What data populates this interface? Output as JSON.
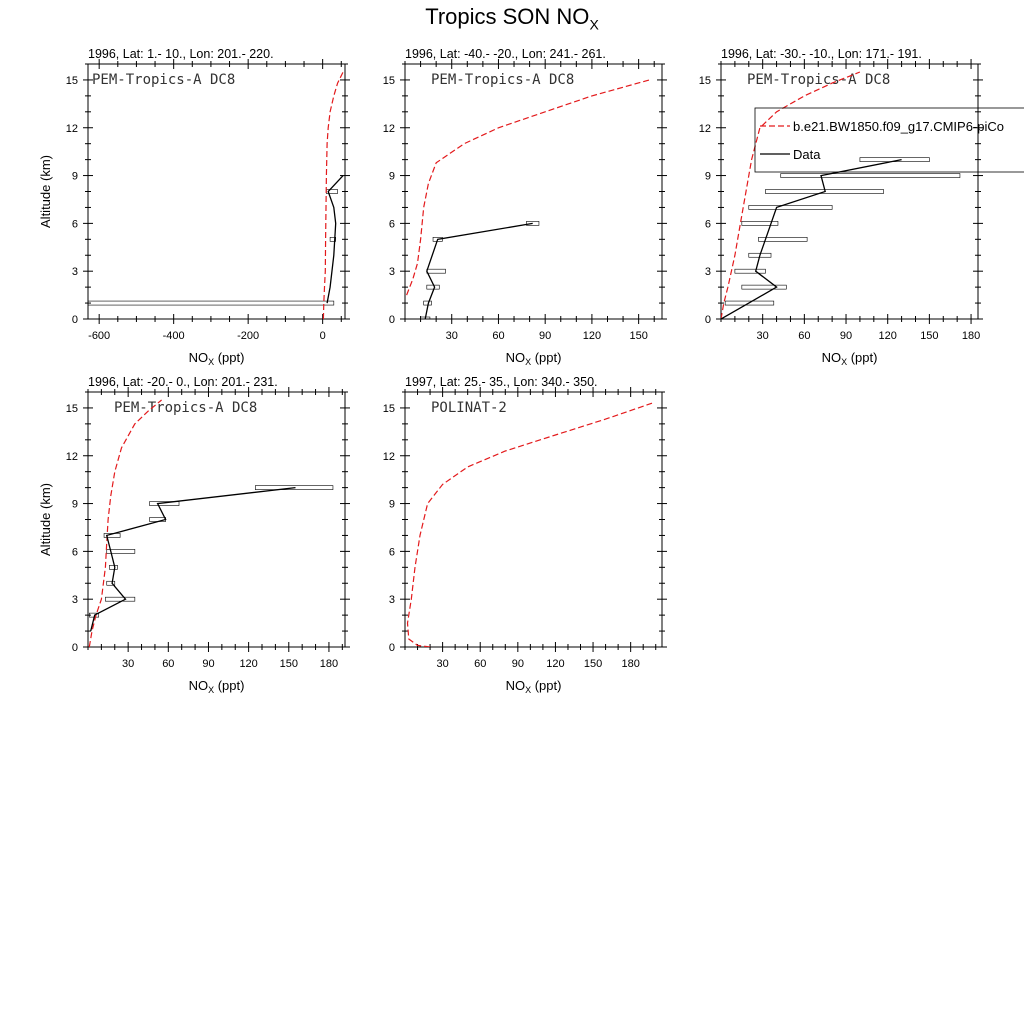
{
  "title": {
    "main": "Tropics SON NO",
    "sub": "X"
  },
  "legend": {
    "model": "b.e21.BW1850.f09_g17.CMIP6-piCo",
    "data": "Data"
  },
  "chart_data": [
    {
      "type": "line",
      "subtitle": "1996, Lat: 1.- 10., Lon: 201.- 220.",
      "campaign": "PEM-Tropics-A DC8",
      "xlabel": "NO",
      "xlabel_sub": "X",
      "xlabel_unit": " (ppt)",
      "ylabel": "Altitude (km)",
      "xlim": [
        -630,
        60
      ],
      "ylim": [
        0,
        16
      ],
      "xticks": [
        -600,
        -400,
        -200,
        0
      ],
      "yticks": [
        0,
        3,
        6,
        9,
        12,
        15
      ],
      "series": [
        {
          "name": "b.e21.BW1850.f09_g17.CMIP6-piCo",
          "style": "dashed",
          "color": "#e31a1c",
          "x": [
            2,
            3,
            5,
            7,
            8,
            9,
            10,
            12,
            15,
            20,
            30,
            40,
            55
          ],
          "y": [
            0,
            1,
            2,
            3,
            5,
            7,
            9,
            11,
            12,
            13,
            14,
            14.8,
            15.5
          ]
        },
        {
          "name": "Data",
          "style": "solid",
          "color": "#000000",
          "x": [
            12,
            20,
            30,
            35,
            30,
            15,
            55
          ],
          "y": [
            1,
            2,
            4,
            6,
            7,
            8,
            9
          ]
        }
      ],
      "boxes": [
        {
          "y": 1,
          "lo": -630,
          "hi": 30
        },
        {
          "y": 8,
          "lo": 10,
          "hi": 40
        },
        {
          "y": 5,
          "lo": 20,
          "hi": 35
        }
      ]
    },
    {
      "type": "line",
      "subtitle": "1996, Lat: -40.- -20., Lon: 241.- 261.",
      "campaign": "PEM-Tropics-A DC8",
      "xlabel": "NO",
      "xlabel_sub": "X",
      "xlabel_unit": " (ppt)",
      "ylabel": "",
      "xlim": [
        0,
        165
      ],
      "ylim": [
        0,
        16
      ],
      "xticks": [
        30,
        60,
        90,
        120,
        150
      ],
      "yticks": [
        0,
        3,
        6,
        9,
        12,
        15
      ],
      "series": [
        {
          "name": "b.e21.BW1850.f09_g17.CMIP6-piCo",
          "style": "dashed",
          "color": "#e31a1c",
          "x": [
            1,
            5,
            8,
            10,
            12,
            15,
            20,
            38,
            60,
            90,
            120,
            157
          ],
          "y": [
            1.5,
            2.5,
            3.5,
            5,
            7,
            8.5,
            9.8,
            11,
            12,
            13,
            14,
            15
          ]
        },
        {
          "name": "Data",
          "style": "solid",
          "color": "#000000",
          "x": [
            13,
            15,
            19,
            14,
            21,
            82
          ],
          "y": [
            0,
            1,
            2,
            3,
            5,
            6
          ]
        }
      ],
      "boxes": [
        {
          "y": 0,
          "lo": 10,
          "hi": 16
        },
        {
          "y": 1,
          "lo": 12,
          "hi": 17
        },
        {
          "y": 2,
          "lo": 14,
          "hi": 22
        },
        {
          "y": 3,
          "lo": 14,
          "hi": 26
        },
        {
          "y": 5,
          "lo": 18,
          "hi": 24
        },
        {
          "y": 6,
          "lo": 78,
          "hi": 86
        }
      ]
    },
    {
      "type": "line",
      "subtitle": "1996, Lat: -30.- -10., Lon: 171.- 191.",
      "campaign": "PEM-Tropics-A DC8",
      "xlabel": "NO",
      "xlabel_sub": "X",
      "xlabel_unit": " (ppt)",
      "ylabel": "",
      "xlim": [
        0,
        185
      ],
      "ylim": [
        0,
        16
      ],
      "xticks": [
        30,
        60,
        90,
        120,
        150,
        180
      ],
      "yticks": [
        0,
        3,
        6,
        9,
        12,
        15
      ],
      "series": [
        {
          "name": "b.e21.BW1850.f09_g17.CMIP6-piCo",
          "style": "dashed",
          "color": "#e31a1c",
          "x": [
            0,
            2,
            5,
            10,
            14,
            18,
            22,
            28,
            40,
            60,
            80,
            100
          ],
          "y": [
            0,
            1,
            2,
            4,
            6,
            8,
            10,
            12,
            13,
            14,
            14.8,
            15.5
          ]
        },
        {
          "name": "Data",
          "style": "solid",
          "color": "#000000",
          "x": [
            0,
            20,
            40,
            25,
            28,
            32,
            40,
            75,
            72,
            130
          ],
          "y": [
            0,
            1,
            2,
            3,
            4,
            5,
            7,
            8,
            9,
            10
          ]
        }
      ],
      "boxes": [
        {
          "y": 1,
          "lo": 3,
          "hi": 38
        },
        {
          "y": 2,
          "lo": 15,
          "hi": 47
        },
        {
          "y": 3,
          "lo": 10,
          "hi": 32
        },
        {
          "y": 4,
          "lo": 20,
          "hi": 36
        },
        {
          "y": 5,
          "lo": 27,
          "hi": 62
        },
        {
          "y": 6,
          "lo": 15,
          "hi": 41
        },
        {
          "y": 7,
          "lo": 20,
          "hi": 80
        },
        {
          "y": 8,
          "lo": 32,
          "hi": 117
        },
        {
          "y": 9,
          "lo": 43,
          "hi": 172
        },
        {
          "y": 10,
          "lo": 100,
          "hi": 150
        }
      ]
    },
    {
      "type": "line",
      "subtitle": "1996, Lat: -20.- 0., Lon: 201.- 231.",
      "campaign": "PEM-Tropics-A DC8",
      "xlabel": "NO",
      "xlabel_sub": "X",
      "xlabel_unit": " (ppt)",
      "ylabel": "Altitude (km)",
      "xlim": [
        0,
        192
      ],
      "ylim": [
        0,
        16
      ],
      "xticks": [
        30,
        60,
        90,
        120,
        150,
        180
      ],
      "yticks": [
        0,
        3,
        6,
        9,
        12,
        15
      ],
      "series": [
        {
          "name": "b.e21.BW1850.f09_g17.CMIP6-piCo",
          "style": "dashed",
          "color": "#e31a1c",
          "x": [
            1,
            3,
            6,
            10,
            13,
            14,
            15,
            17,
            20,
            25,
            35,
            45,
            55
          ],
          "y": [
            0,
            1,
            2,
            3,
            5,
            6.5,
            8,
            9.5,
            11,
            12.5,
            14,
            14.8,
            15.5
          ]
        },
        {
          "name": "Data",
          "style": "solid",
          "color": "#000000",
          "x": [
            2,
            5,
            28,
            18,
            20,
            17,
            14,
            58,
            52,
            155
          ],
          "y": [
            1,
            2,
            3,
            4,
            5,
            6,
            7,
            8,
            9,
            10
          ]
        }
      ],
      "boxes": [
        {
          "y": 2,
          "lo": 1,
          "hi": 8
        },
        {
          "y": 3,
          "lo": 13,
          "hi": 35
        },
        {
          "y": 4,
          "lo": 14,
          "hi": 20
        },
        {
          "y": 5,
          "lo": 16,
          "hi": 22
        },
        {
          "y": 6,
          "lo": 14,
          "hi": 35
        },
        {
          "y": 7,
          "lo": 12,
          "hi": 24
        },
        {
          "y": 8,
          "lo": 46,
          "hi": 58
        },
        {
          "y": 9,
          "lo": 46,
          "hi": 68
        },
        {
          "y": 10,
          "lo": 125,
          "hi": 183
        }
      ]
    },
    {
      "type": "line",
      "subtitle": "1997, Lat: 25.- 35., Lon: 340.- 350.",
      "campaign": "POLINAT-2",
      "xlabel": "NO",
      "xlabel_sub": "X",
      "xlabel_unit": " (ppt)",
      "ylabel": "",
      "xlim": [
        0,
        205
      ],
      "ylim": [
        0,
        16
      ],
      "xticks": [
        30,
        60,
        90,
        120,
        150,
        180
      ],
      "yticks": [
        0,
        3,
        6,
        9,
        12,
        15
      ],
      "series": [
        {
          "name": "b.e21.BW1850.f09_g17.CMIP6-piCo",
          "style": "dashed",
          "color": "#e31a1c",
          "x": [
            20,
            10,
            3,
            2,
            5,
            8,
            12,
            18,
            30,
            50,
            80,
            120,
            160,
            197
          ],
          "y": [
            0,
            0.1,
            0.5,
            1.5,
            3,
            5,
            7,
            9,
            10.2,
            11.3,
            12.3,
            13.3,
            14.3,
            15.3
          ]
        }
      ],
      "boxes": []
    }
  ]
}
